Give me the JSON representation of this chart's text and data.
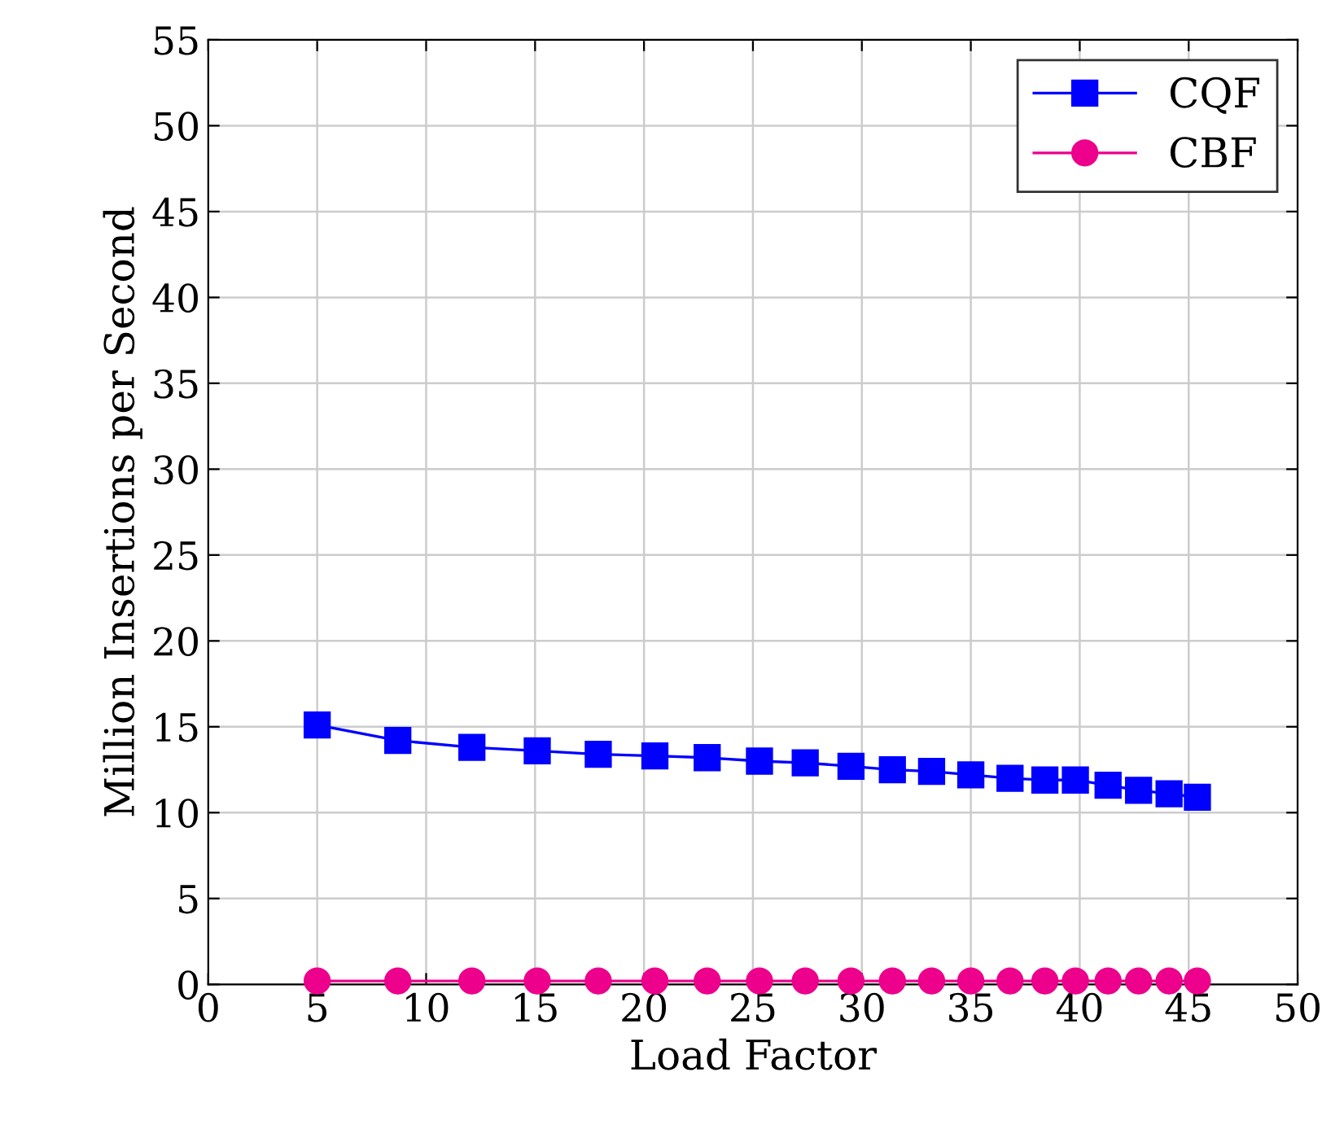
{
  "chart_data": {
    "type": "line",
    "xlabel": "Load Factor",
    "ylabel": "Million Insertions per Second",
    "xlim": [
      0,
      50
    ],
    "xticks": [
      0,
      5,
      10,
      15,
      20,
      25,
      30,
      35,
      40,
      45,
      50
    ],
    "ylim": [
      0,
      55
    ],
    "yticks": [
      0,
      5,
      10,
      15,
      20,
      25,
      30,
      35,
      40,
      45,
      50,
      55
    ],
    "grid": true,
    "legend": "top right",
    "line_style": "solid",
    "series": [
      {
        "name": "CQF",
        "color": "#0000ff",
        "marker": "square",
        "x": [
          5.0,
          8.7,
          12.1,
          15.1,
          17.9,
          20.5,
          22.9,
          25.3,
          27.4,
          29.5,
          31.4,
          33.2,
          35.0,
          36.8,
          38.4,
          39.8,
          41.3,
          42.7,
          44.1,
          45.4
        ],
        "values": [
          15.1,
          14.2,
          13.8,
          13.6,
          13.4,
          13.3,
          13.2,
          13.0,
          12.9,
          12.7,
          12.5,
          12.4,
          12.2,
          12.0,
          11.9,
          11.9,
          11.6,
          11.3,
          11.1,
          10.9
        ]
      },
      {
        "name": "CBF",
        "color": "#ec008c",
        "marker": "circle",
        "x": [
          5.0,
          8.7,
          12.1,
          15.1,
          17.9,
          20.5,
          22.9,
          25.3,
          27.4,
          29.5,
          31.4,
          33.2,
          35.0,
          36.8,
          38.4,
          39.8,
          41.3,
          42.7,
          44.1,
          45.4
        ],
        "values": [
          0.2,
          0.2,
          0.2,
          0.2,
          0.2,
          0.2,
          0.2,
          0.2,
          0.2,
          0.2,
          0.2,
          0.2,
          0.2,
          0.2,
          0.2,
          0.2,
          0.2,
          0.2,
          0.2,
          0.2
        ]
      }
    ]
  }
}
